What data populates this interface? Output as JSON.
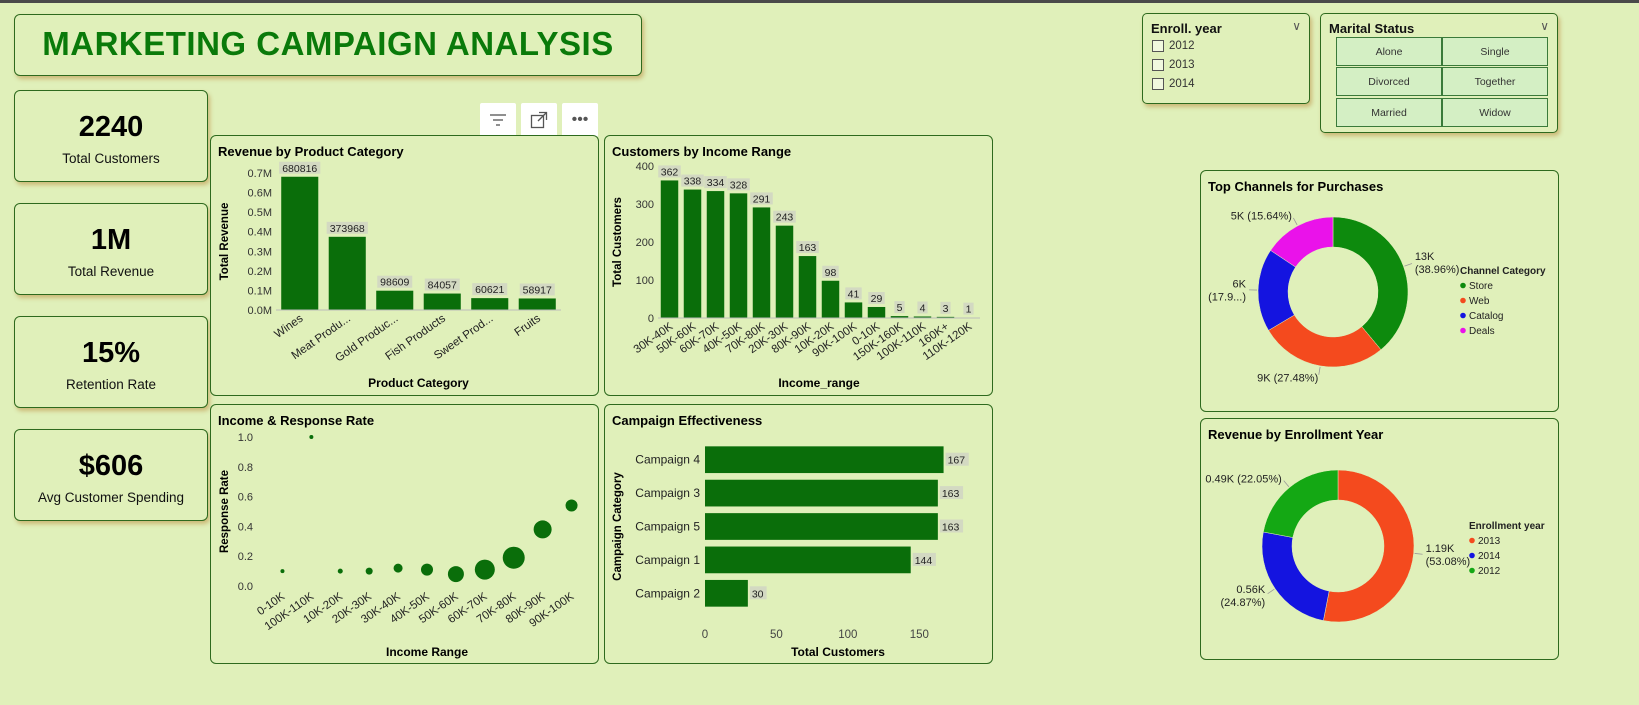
{
  "dashboard": {
    "title": "MARKETING CAMPAIGN ANALYSIS"
  },
  "kpis": [
    {
      "value": "2240",
      "label": "Total Customers"
    },
    {
      "value": "1M",
      "label": "Total Revenue"
    },
    {
      "value": "15%",
      "label": "Retention Rate"
    },
    {
      "value": "$606",
      "label": "Avg Customer Spending"
    }
  ],
  "toolbar": {
    "icons": [
      "filter-icon",
      "focus-mode-icon",
      "more-options-icon"
    ],
    "more_label": "•••"
  },
  "enroll_slicer": {
    "title": "Enroll. year",
    "options": [
      "2012",
      "2013",
      "2014"
    ]
  },
  "marital_slicer": {
    "title": "Marital Status",
    "options": [
      "Alone",
      "Single",
      "Divorced",
      "Together",
      "Married",
      "Widow"
    ]
  },
  "chart_data": [
    {
      "id": "revenue_by_product",
      "type": "bar",
      "title": "Revenue by Product Category",
      "xlabel": "Product Category",
      "ylabel": "Total Revenue",
      "categories": [
        "Wines",
        "Meat Produ...",
        "Gold Produc...",
        "Fish Products",
        "Sweet Prod...",
        "Fruits"
      ],
      "values": [
        680816,
        373968,
        98609,
        84057,
        60621,
        58917
      ],
      "yticks": [
        "0.0M",
        "0.1M",
        "0.2M",
        "0.3M",
        "0.4M",
        "0.5M",
        "0.6M",
        "0.7M"
      ],
      "ylim": [
        0,
        700000
      ],
      "color": "#0a6e0a"
    },
    {
      "id": "customers_by_income",
      "type": "bar",
      "title": "Customers by Income Range",
      "xlabel": "Income_range",
      "ylabel": "Total Customers",
      "categories": [
        "30K-40K",
        "50K-60K",
        "60K-70K",
        "40K-50K",
        "70K-80K",
        "20K-30K",
        "80K-90K",
        "10K-20K",
        "90K-100K",
        "0-10K",
        "150K-160K",
        "100K-110K",
        "160K+",
        "110K-120K"
      ],
      "values": [
        362,
        338,
        334,
        328,
        291,
        243,
        163,
        98,
        41,
        29,
        5,
        4,
        3,
        1
      ],
      "yticks": [
        "0",
        "100",
        "200",
        "300",
        "400"
      ],
      "ylim": [
        0,
        400
      ],
      "color": "#0a6e0a"
    },
    {
      "id": "income_response",
      "type": "scatter",
      "title": "Income & Response Rate",
      "xlabel": "Income Range",
      "ylabel": "Response Rate",
      "categories": [
        "0-10K",
        "100K-110K",
        "10K-20K",
        "20K-30K",
        "30K-40K",
        "40K-50K",
        "50K-60K",
        "60K-70K",
        "70K-80K",
        "80K-90K",
        "90K-100K"
      ],
      "values": [
        0.1,
        1.0,
        0.1,
        0.1,
        0.12,
        0.11,
        0.08,
        0.11,
        0.19,
        0.38,
        0.54
      ],
      "sizes": [
        2,
        2,
        2.5,
        3.5,
        4.5,
        6,
        8,
        10,
        11,
        9,
        6
      ],
      "yticks": [
        "0.0",
        "0.2",
        "0.4",
        "0.6",
        "0.8",
        "1.0"
      ],
      "ylim": [
        0,
        1.0
      ],
      "color": "#0a6e0a"
    },
    {
      "id": "campaign_effectiveness",
      "type": "bar",
      "orientation": "horizontal",
      "title": "Campaign Effectiveness",
      "xlabel": "Total Customers",
      "ylabel": "Campaign Category",
      "categories": [
        "Campaign 4",
        "Campaign 3",
        "Campaign 5",
        "Campaign 1",
        "Campaign 2"
      ],
      "values": [
        167,
        163,
        163,
        144,
        30
      ],
      "xticks": [
        "0",
        "50",
        "100",
        "150"
      ],
      "xlim": [
        0,
        175
      ],
      "color": "#0a6e0a"
    },
    {
      "id": "top_channels",
      "type": "pie",
      "title": "Top Channels for Purchases",
      "legend_title": "Channel Category",
      "labels": [
        "Store",
        "Web",
        "Catalog",
        "Deals"
      ],
      "values": [
        38.96,
        27.48,
        17.9,
        15.64
      ],
      "data_labels": [
        "13K\n(38.96%)",
        "9K (27.48%)",
        "6K\n(17.9...)",
        "5K (15.64%)"
      ],
      "colors": [
        "#0d8a0d",
        "#f44a1e",
        "#1414e0",
        "#ea12ea"
      ]
    },
    {
      "id": "revenue_by_enrollment",
      "type": "pie",
      "title": "Revenue by Enrollment Year",
      "legend_title": "Enrollment year",
      "labels": [
        "2013",
        "2014",
        "2012"
      ],
      "values": [
        53.08,
        24.87,
        22.05
      ],
      "data_labels": [
        "1.19K\n(53.08%)",
        "0.56K\n(24.87%)",
        "0.49K (22.05%)"
      ],
      "colors": [
        "#f44a1e",
        "#1414e0",
        "#14a814"
      ]
    }
  ]
}
